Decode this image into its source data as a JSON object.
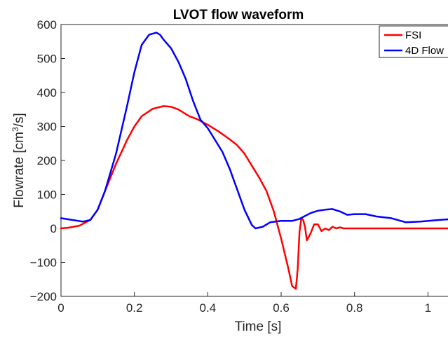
{
  "chart_data": {
    "type": "line",
    "title": "LVOT flow waveform",
    "xlabel": "Time [s]",
    "ylabel_main": "Flowrate [cm",
    "ylabel_sup": "3",
    "ylabel_tail": "/s]",
    "xlim": [
      0,
      1.07
    ],
    "ylim": [
      -200,
      600
    ],
    "xticks": [
      0,
      0.2,
      0.4,
      0.6,
      0.8,
      1
    ],
    "xtick_labels": [
      "0",
      "0.2",
      "0.4",
      "0.6",
      "0.8",
      "1"
    ],
    "yticks": [
      -200,
      -100,
      0,
      100,
      200,
      300,
      400,
      500,
      600
    ],
    "ytick_labels": [
      "−200",
      "−100",
      "0",
      "100",
      "200",
      "300",
      "400",
      "500",
      "600"
    ],
    "grid": false,
    "legend_position": "top-right",
    "series": [
      {
        "name": "FSI",
        "color": "#ff0000",
        "x": [
          0,
          0.02,
          0.05,
          0.08,
          0.1,
          0.12,
          0.15,
          0.18,
          0.2,
          0.22,
          0.25,
          0.28,
          0.3,
          0.32,
          0.35,
          0.37,
          0.4,
          0.43,
          0.46,
          0.48,
          0.5,
          0.52,
          0.54,
          0.56,
          0.58,
          0.6,
          0.62,
          0.63,
          0.64,
          0.645,
          0.65,
          0.655,
          0.66,
          0.665,
          0.67,
          0.68,
          0.69,
          0.7,
          0.71,
          0.72,
          0.73,
          0.74,
          0.75,
          0.76,
          0.77,
          0.8,
          0.85,
          0.9,
          1.0,
          1.07
        ],
        "y": [
          0,
          2,
          8,
          25,
          55,
          110,
          190,
          260,
          300,
          330,
          352,
          360,
          358,
          350,
          330,
          322,
          305,
          285,
          262,
          245,
          220,
          185,
          150,
          110,
          50,
          -30,
          -120,
          -170,
          -178,
          -120,
          -10,
          30,
          25,
          5,
          -35,
          -15,
          12,
          12,
          -8,
          0,
          -5,
          5,
          0,
          3,
          0,
          0,
          0,
          0,
          0,
          0
        ]
      },
      {
        "name": "4D Flow",
        "color": "#0000ff",
        "x": [
          0,
          0.03,
          0.06,
          0.08,
          0.1,
          0.12,
          0.15,
          0.18,
          0.2,
          0.22,
          0.24,
          0.26,
          0.27,
          0.28,
          0.3,
          0.32,
          0.34,
          0.36,
          0.38,
          0.4,
          0.42,
          0.44,
          0.46,
          0.48,
          0.5,
          0.52,
          0.53,
          0.55,
          0.57,
          0.6,
          0.63,
          0.65,
          0.68,
          0.7,
          0.72,
          0.74,
          0.76,
          0.78,
          0.8,
          0.83,
          0.86,
          0.9,
          0.94,
          0.98,
          1.02,
          1.07
        ],
        "y": [
          30,
          25,
          20,
          25,
          55,
          110,
          220,
          360,
          460,
          540,
          570,
          576,
          570,
          555,
          530,
          490,
          440,
          375,
          320,
          295,
          260,
          225,
          175,
          115,
          55,
          10,
          0,
          5,
          18,
          22,
          22,
          28,
          45,
          52,
          55,
          57,
          50,
          40,
          42,
          42,
          35,
          30,
          18,
          20,
          24,
          28
        ]
      }
    ]
  }
}
